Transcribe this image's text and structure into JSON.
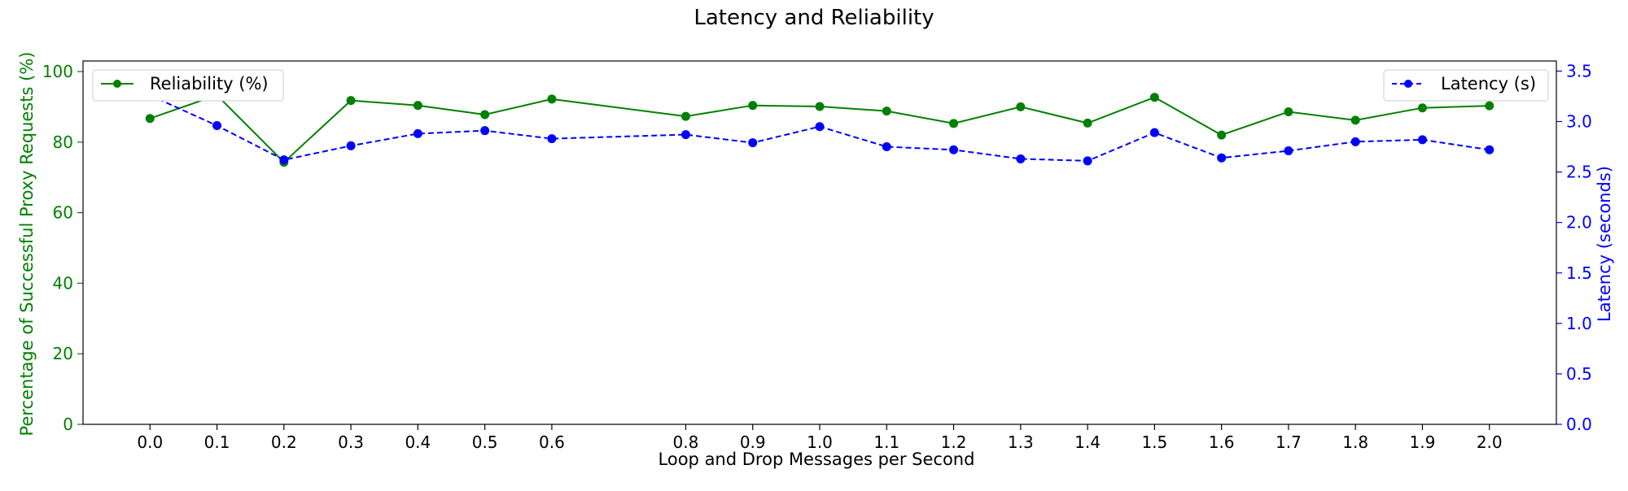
{
  "chart_data": {
    "type": "line",
    "title": "Latency and Reliability",
    "xlabel": "Loop and Drop Messages per Second",
    "ylabel_left": "Percentage of Successful Proxy Requests (%)",
    "ylabel_right": "Latency (seconds)",
    "x": [
      0.0,
      0.1,
      0.2,
      0.3,
      0.4,
      0.5,
      0.6,
      0.8,
      0.9,
      1.0,
      1.1,
      1.2,
      1.3,
      1.4,
      1.5,
      1.6,
      1.7,
      1.8,
      1.9,
      2.0
    ],
    "x_tick_labels": [
      "0.0",
      "0.1",
      "0.2",
      "0.3",
      "0.4",
      "0.5",
      "0.6",
      "0.8",
      "0.9",
      "1.0",
      "1.1",
      "1.2",
      "1.3",
      "1.4",
      "1.5",
      "1.6",
      "1.7",
      "1.8",
      "1.9",
      "2.0"
    ],
    "xlim": [
      -0.1,
      2.1
    ],
    "y_left_lim": [
      0,
      103
    ],
    "y_left_ticks": [
      0,
      20,
      40,
      60,
      80,
      100
    ],
    "y_left_tick_labels": [
      "0",
      "20",
      "40",
      "60",
      "80",
      "100"
    ],
    "y_right_lim": [
      0,
      3.6
    ],
    "y_right_ticks": [
      0.0,
      0.5,
      1.0,
      1.5,
      2.0,
      2.5,
      3.0,
      3.5
    ],
    "y_right_tick_labels": [
      "0.0",
      "0.5",
      "1.0",
      "1.5",
      "2.0",
      "2.5",
      "3.0",
      "3.5"
    ],
    "grid": false,
    "series": [
      {
        "name": "Reliability (%)",
        "axis": "left",
        "color": "#008000",
        "line_style": "solid",
        "marker": "circle",
        "legend_position": "top-left",
        "values": [
          86.7,
          93.3,
          74.3,
          91.8,
          90.4,
          87.8,
          92.2,
          87.3,
          90.4,
          90.1,
          88.8,
          85.3,
          90.0,
          85.4,
          92.7,
          82.0,
          88.6,
          86.2,
          89.7,
          90.3
        ]
      },
      {
        "name": "Latency (s)",
        "axis": "right",
        "color": "#0000ff",
        "line_style": "dashed",
        "marker": "circle",
        "legend_position": "top-right",
        "values": [
          3.26,
          2.96,
          2.62,
          2.76,
          2.88,
          2.91,
          2.83,
          2.87,
          2.79,
          2.95,
          2.75,
          2.72,
          2.63,
          2.61,
          2.89,
          2.64,
          2.71,
          2.8,
          2.82,
          2.72
        ]
      }
    ]
  }
}
